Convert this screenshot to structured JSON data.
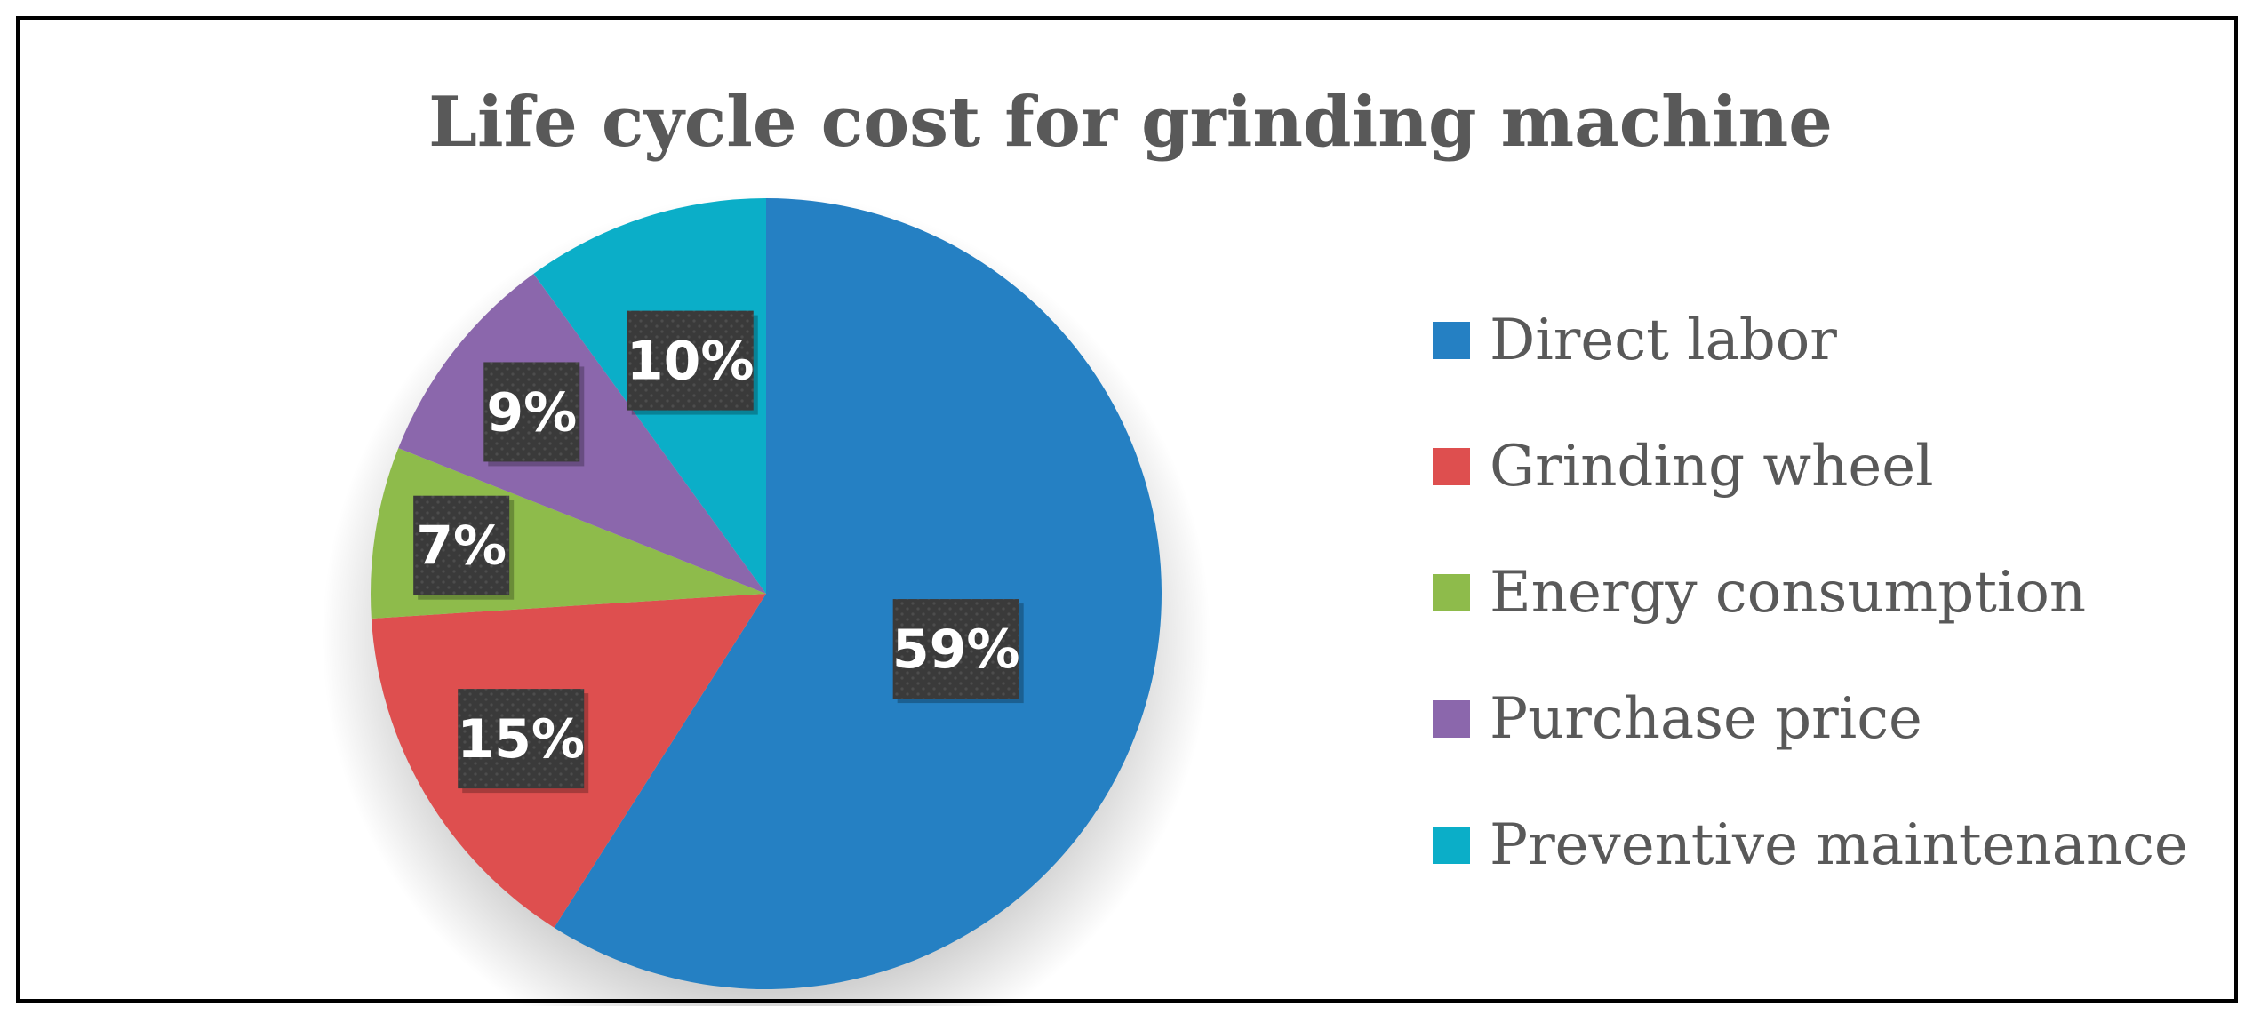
{
  "chart_data": {
    "type": "pie",
    "title": "Life cycle cost for grinding machine",
    "legend_position": "right",
    "slices": [
      {
        "name": "Direct labor",
        "value": 59,
        "label": "59%",
        "color": "#2580C3"
      },
      {
        "name": "Grinding wheel",
        "value": 15,
        "label": "15%",
        "color": "#DE4F4F"
      },
      {
        "name": "Energy consumption",
        "value": 7,
        "label": "7%",
        "color": "#8EBB4B"
      },
      {
        "name": "Purchase price",
        "value": 9,
        "label": "9%",
        "color": "#8B67AC"
      },
      {
        "name": "Preventive maintenance",
        "value": 10,
        "label": "10%",
        "color": "#0BAEC8"
      }
    ]
  }
}
